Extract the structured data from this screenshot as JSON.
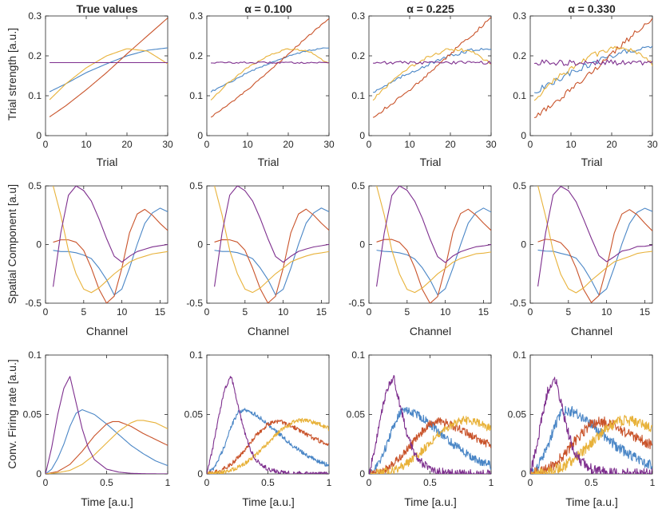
{
  "colors": {
    "blue": "#4a86c6",
    "red": "#c9532a",
    "yellow": "#e8b23a",
    "purple": "#7e2f8e"
  },
  "row_labels": {
    "trial": {
      "ylabel": "Trial strength [a.u.]",
      "xlabel": "Trial"
    },
    "spatial": {
      "ylabel": "Spatial Component [a.u]",
      "xlabel": "Channel"
    },
    "firing": {
      "ylabel": "Conv. Firing rate [a.u.]",
      "xlabel": "Time [a.u.]"
    }
  },
  "column_titles": [
    "True values",
    "α = 0.100",
    "α = 0.225",
    "α = 0.330"
  ],
  "chart_data": [
    {
      "type": "line",
      "row": "trial",
      "noise_levels": [
        0,
        0.002,
        0.004,
        0.007
      ],
      "title_source": "column_titles",
      "xlabel": "Trial",
      "ylabel": "Trial strength [a.u.]",
      "xlim": [
        0,
        30
      ],
      "ylim": [
        0,
        0.3
      ],
      "xticks": [
        0,
        10,
        20,
        30
      ],
      "yticks": [
        0,
        0.1,
        0.2,
        0.3
      ],
      "ytick_labels": [
        "0",
        "0.1",
        "0.2",
        "0.3"
      ],
      "series": [
        {
          "name": "blue",
          "color": "blue",
          "x": [
            1,
            5,
            10,
            15,
            20,
            25,
            30
          ],
          "y": [
            0.11,
            0.13,
            0.158,
            0.18,
            0.2,
            0.214,
            0.22
          ]
        },
        {
          "name": "red",
          "color": "red",
          "x": [
            1,
            5,
            10,
            15,
            20,
            25,
            30
          ],
          "y": [
            0.047,
            0.075,
            0.115,
            0.158,
            0.205,
            0.25,
            0.295
          ]
        },
        {
          "name": "yellow",
          "color": "yellow",
          "x": [
            1,
            5,
            10,
            15,
            20,
            25,
            30
          ],
          "y": [
            0.09,
            0.13,
            0.17,
            0.2,
            0.218,
            0.212,
            0.18
          ]
        },
        {
          "name": "purple",
          "color": "purple",
          "x": [
            1,
            5,
            10,
            15,
            20,
            25,
            30
          ],
          "y": [
            0.183,
            0.183,
            0.183,
            0.183,
            0.183,
            0.183,
            0.183
          ]
        }
      ]
    },
    {
      "type": "line",
      "row": "spatial",
      "noise_levels": [
        0,
        0.002,
        0.004,
        0.006
      ],
      "xlabel": "Channel",
      "ylabel": "Spatial Component [a.u]",
      "xlim": [
        0,
        16
      ],
      "ylim": [
        -0.5,
        0.5
      ],
      "xticks": [
        0,
        5,
        10,
        15
      ],
      "yticks": [
        -0.5,
        0,
        0.5
      ],
      "ytick_labels": [
        "-0.5",
        "0",
        "0.5"
      ],
      "series": [
        {
          "name": "blue",
          "color": "blue",
          "x": [
            1,
            2,
            3,
            4,
            5,
            6,
            7,
            8,
            9,
            10,
            11,
            12,
            13,
            14,
            15,
            16
          ],
          "y": [
            -0.05,
            -0.06,
            -0.06,
            -0.07,
            -0.09,
            -0.12,
            -0.2,
            -0.3,
            -0.43,
            -0.38,
            -0.2,
            0,
            0.18,
            0.27,
            0.31,
            0.28
          ]
        },
        {
          "name": "red",
          "color": "red",
          "x": [
            1,
            2,
            3,
            4,
            5,
            6,
            7,
            8,
            9,
            10,
            11,
            12,
            13,
            14,
            15,
            16
          ],
          "y": [
            0.02,
            0.04,
            0.04,
            0.02,
            -0.05,
            -0.2,
            -0.38,
            -0.5,
            -0.44,
            -0.2,
            0.1,
            0.26,
            0.3,
            0.25,
            0.18,
            0.12
          ]
        },
        {
          "name": "yellow",
          "color": "yellow",
          "x": [
            1,
            2,
            3,
            4,
            5,
            6,
            7,
            8,
            9,
            10,
            11,
            12,
            13,
            14,
            15,
            16
          ],
          "y": [
            0.5,
            0.25,
            -0.05,
            -0.25,
            -0.38,
            -0.41,
            -0.37,
            -0.31,
            -0.25,
            -0.2,
            -0.15,
            -0.12,
            -0.1,
            -0.08,
            -0.07,
            -0.06
          ]
        },
        {
          "name": "purple",
          "color": "purple",
          "x": [
            1,
            2,
            3,
            4,
            5,
            6,
            7,
            8,
            9,
            10,
            11,
            12,
            13,
            14,
            15,
            16
          ],
          "y": [
            -0.36,
            0.1,
            0.42,
            0.5,
            0.46,
            0.37,
            0.22,
            0.05,
            -0.1,
            -0.15,
            -0.1,
            -0.06,
            -0.04,
            -0.02,
            -0.01,
            0.0
          ]
        }
      ]
    },
    {
      "type": "line",
      "row": "firing",
      "noise_levels": [
        0,
        0.0018,
        0.0035,
        0.0045
      ],
      "xlabel": "Time [a.u.]",
      "ylabel": "Conv. Firing rate [a.u.]",
      "xlim": [
        0,
        1
      ],
      "ylim": [
        0,
        0.1
      ],
      "xticks": [
        0,
        0.5,
        1
      ],
      "xtick_labels": [
        "0",
        "0.5",
        "1"
      ],
      "yticks": [
        0,
        0.05,
        0.1
      ],
      "ytick_labels": [
        "0",
        "0.05",
        "0.1"
      ],
      "series": [
        {
          "name": "blue",
          "color": "blue",
          "x": [
            0,
            0.05,
            0.1,
            0.15,
            0.2,
            0.25,
            0.3,
            0.4,
            0.5,
            0.6,
            0.7,
            0.8,
            0.9,
            1.0
          ],
          "y": [
            0,
            0.004,
            0.013,
            0.025,
            0.04,
            0.051,
            0.054,
            0.05,
            0.042,
            0.033,
            0.024,
            0.017,
            0.011,
            0.007
          ]
        },
        {
          "name": "red",
          "color": "red",
          "x": [
            0,
            0.1,
            0.2,
            0.3,
            0.4,
            0.5,
            0.55,
            0.6,
            0.7,
            0.8,
            0.9,
            1.0
          ],
          "y": [
            0,
            0.002,
            0.008,
            0.019,
            0.032,
            0.042,
            0.044,
            0.044,
            0.04,
            0.034,
            0.029,
            0.024
          ]
        },
        {
          "name": "yellow",
          "color": "yellow",
          "x": [
            0,
            0.1,
            0.2,
            0.3,
            0.4,
            0.5,
            0.6,
            0.7,
            0.75,
            0.8,
            0.9,
            1.0
          ],
          "y": [
            0,
            0.001,
            0.003,
            0.008,
            0.016,
            0.026,
            0.036,
            0.043,
            0.045,
            0.045,
            0.043,
            0.038
          ]
        },
        {
          "name": "purple",
          "color": "purple",
          "x": [
            0,
            0.05,
            0.1,
            0.15,
            0.2,
            0.25,
            0.3,
            0.35,
            0.4,
            0.5,
            0.6,
            0.7,
            0.8,
            0.9,
            1.0
          ],
          "y": [
            0,
            0.022,
            0.05,
            0.072,
            0.082,
            0.06,
            0.038,
            0.022,
            0.012,
            0.004,
            0.0015,
            0.0005,
            0.0002,
            0.0001,
            0.0
          ]
        }
      ]
    }
  ]
}
